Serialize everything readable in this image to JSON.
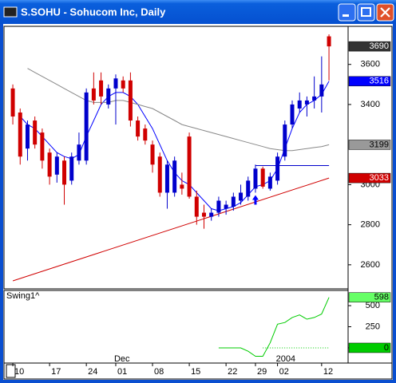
{
  "window_title": "S.SOHU - Sohucom Inc, Daily",
  "chart_data": [
    {
      "type": "candlestick",
      "open": [
        3480,
        3360,
        3180,
        3320,
        3260,
        3160,
        3050,
        3120,
        3020,
        3120,
        3120,
        3480,
        3520,
        3400,
        3480,
        3520,
        3520,
        3320,
        3280,
        3200,
        3140,
        2960,
        2960,
        3000,
        3240,
        2940,
        2860,
        2840,
        2860,
        2880,
        2890,
        2920,
        2940,
        2980,
        3080,
        2980,
        3020,
        3140,
        3300,
        3380,
        3400,
        3420,
        3440,
        3740
      ],
      "high": [
        3500,
        3380,
        3320,
        3340,
        3280,
        3180,
        3160,
        3140,
        3160,
        3260,
        3480,
        3560,
        3560,
        3500,
        3550,
        3540,
        3560,
        3340,
        3300,
        3220,
        3160,
        3120,
        3140,
        3060,
        3260,
        2970,
        2900,
        2880,
        2940,
        2920,
        2960,
        3000,
        3040,
        3100,
        3090,
        3060,
        3160,
        3320,
        3420,
        3460,
        3440,
        3540,
        3640,
        3750
      ],
      "low": [
        3300,
        3100,
        3120,
        3180,
        3080,
        3000,
        3010,
        2900,
        3000,
        3100,
        3100,
        3400,
        3400,
        3380,
        3300,
        3460,
        3290,
        3220,
        3200,
        3060,
        2940,
        2880,
        2940,
        2950,
        2930,
        2800,
        2780,
        2820,
        2840,
        2850,
        2870,
        2900,
        2920,
        2960,
        2980,
        2970,
        3000,
        3120,
        3280,
        3360,
        3340,
        3380,
        3360,
        3520
      ],
      "close": [
        3340,
        3140,
        3300,
        3200,
        3120,
        3040,
        3140,
        3000,
        3140,
        3200,
        3460,
        3420,
        3440,
        3480,
        3530,
        3480,
        3320,
        3240,
        3220,
        3100,
        2960,
        3100,
        3120,
        2980,
        2940,
        2840,
        2840,
        2860,
        2920,
        2900,
        2940,
        2960,
        3020,
        3080,
        2990,
        3040,
        3140,
        3300,
        3400,
        3420,
        3420,
        3440,
        3500,
        3690
      ],
      "up_color": "#0000cc",
      "down_color": "#d00000",
      "box_color": "#333333",
      "lines": [
        {
          "color": "#0000ff",
          "box_color": "#0000ff",
          "values": [
            null,
            3340,
            3300,
            3280,
            3240,
            3200,
            3160,
            3140,
            3130,
            3150,
            3240,
            3320,
            3400,
            3440,
            3460,
            3460,
            3440,
            3400,
            3340,
            3280,
            3200,
            3120,
            3060,
            3020,
            3000,
            2960,
            2920,
            2880,
            2870,
            2880,
            2890,
            2910,
            2950,
            2990,
            3000,
            3020,
            3080,
            3180,
            3280,
            3360,
            3400,
            3420,
            3450,
            3516
          ]
        },
        {
          "color": "#888888",
          "box_color": "#999999",
          "values": [
            null,
            null,
            3580,
            3560,
            3540,
            3520,
            3500,
            3480,
            3460,
            3440,
            3420,
            3410,
            3410,
            3410,
            3420,
            3420,
            3410,
            3400,
            3390,
            3380,
            3360,
            3340,
            3320,
            3300,
            3290,
            3280,
            3270,
            3260,
            3250,
            3240,
            3230,
            3220,
            3210,
            3200,
            3190,
            3180,
            3175,
            3170,
            3170,
            3175,
            3180,
            3185,
            3190,
            3199
          ]
        }
      ],
      "trend_line": {
        "color": "#d00000",
        "box_color": "#d00000",
        "x": [
          0,
          43
        ],
        "values": [
          2520,
          3033
        ]
      },
      "level_line": {
        "color": "#0000cc",
        "x": [
          33,
          43
        ],
        "values": [
          3095,
          3095
        ]
      },
      "arrow": {
        "x": 33,
        "value": 2900,
        "color": "#0000ff"
      },
      "xlim": [
        -1.2,
        45.6
      ],
      "ylim": [
        2480,
        3790
      ],
      "yticks": [
        2600,
        2800,
        3000,
        3400,
        3600
      ],
      "xticks": [
        {
          "value": 0,
          "label": "10"
        },
        {
          "value": 5,
          "label": "17"
        },
        {
          "value": 10,
          "label": "24"
        },
        {
          "value": 14,
          "label": "01"
        },
        {
          "value": 19,
          "label": "08"
        },
        {
          "value": 24,
          "label": "15"
        },
        {
          "value": 29,
          "label": "22"
        },
        {
          "value": 33,
          "label": "29"
        },
        {
          "value": 36,
          "label": "02"
        },
        {
          "value": 42,
          "label": "12"
        }
      ],
      "period_labels": [
        {
          "value": 14,
          "label": "Dec"
        },
        {
          "value": 36,
          "label": "2004"
        }
      ]
    },
    {
      "type": "line",
      "title": "Swing1^",
      "color": "#00cc00",
      "box_color": "#66ff66",
      "values": [
        null,
        null,
        null,
        null,
        null,
        null,
        null,
        null,
        null,
        null,
        null,
        null,
        null,
        null,
        null,
        null,
        null,
        null,
        null,
        null,
        null,
        null,
        null,
        null,
        null,
        null,
        null,
        null,
        0,
        0,
        0,
        0,
        -40,
        -100,
        -100,
        60,
        280,
        300,
        360,
        390,
        340,
        360,
        400,
        598
      ],
      "reference_line": {
        "value": 0,
        "x": [
          34,
          43
        ]
      },
      "ylim": [
        -180,
        680
      ],
      "yticks": [
        0,
        250,
        500
      ]
    }
  ]
}
